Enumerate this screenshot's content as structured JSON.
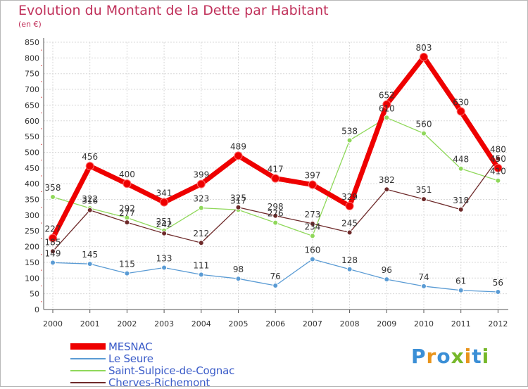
{
  "title": "Evolution du Montant de la Dette par Habitant",
  "unit": "(en €)",
  "logo": "Proxiti",
  "chart_data": {
    "type": "line",
    "title": "Evolution du Montant de la Dette par Habitant",
    "ylabel": "(en €)",
    "xlabel": "",
    "ylim": [
      0,
      850
    ],
    "yticks": [
      0,
      50,
      100,
      150,
      200,
      250,
      300,
      350,
      400,
      450,
      500,
      550,
      600,
      650,
      700,
      750,
      800,
      850
    ],
    "x": [
      "2000",
      "2001",
      "2002",
      "2003",
      "2004",
      "2005",
      "2006",
      "2007",
      "2008",
      "2009",
      "2010",
      "2011",
      "2012"
    ],
    "grid": true,
    "legend_position": "bottom-left",
    "series": [
      {
        "name": "MESNAC",
        "color": "#ee0000",
        "values": [
          227,
          456,
          400,
          341,
          399,
          489,
          417,
          397,
          329,
          652,
          803,
          630,
          450
        ]
      },
      {
        "name": "Le Seure",
        "color": "#5a9bd4",
        "values": [
          149,
          145,
          115,
          133,
          111,
          98,
          76,
          160,
          128,
          96,
          74,
          61,
          56
        ]
      },
      {
        "name": "Saint-Sulpice-de-Cognac",
        "color": "#8fd85a",
        "values": [
          358,
          322,
          292,
          251,
          323,
          317,
          276,
          234,
          538,
          610,
          560,
          448,
          410
        ]
      },
      {
        "name": "Cherves-Richemont",
        "color": "#6e2a2a",
        "values": [
          185,
          316,
          277,
          242,
          212,
          325,
          298,
          273,
          245,
          382,
          351,
          318,
          480
        ]
      }
    ]
  }
}
